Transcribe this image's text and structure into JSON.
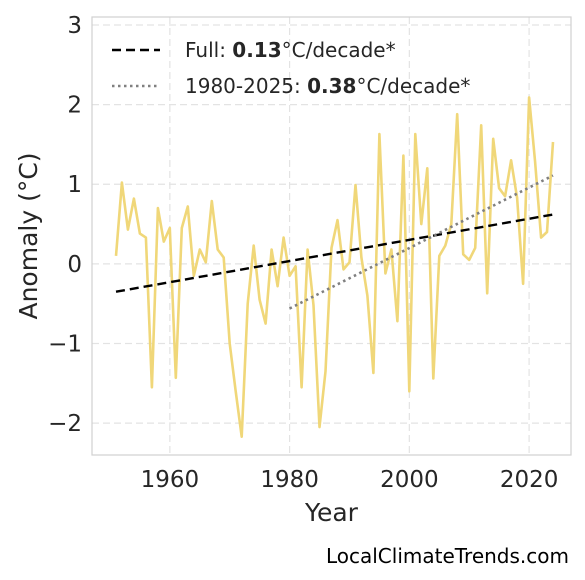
{
  "chart_data": {
    "type": "line",
    "title": "",
    "xlabel": "Year",
    "ylabel": "Anomaly (°C)",
    "xlim": [
      1947,
      2027
    ],
    "ylim": [
      -2.4,
      3.1
    ],
    "xticks": [
      1960,
      1980,
      2000,
      2020
    ],
    "yticks": [
      3,
      2,
      1,
      0,
      -1,
      -2
    ],
    "ytick_labels": [
      "3",
      "2",
      "1",
      "0",
      "−1",
      "−2"
    ],
    "grid": true,
    "legend_position": "top-left",
    "series": [
      {
        "style": "line",
        "color": "#f0d779",
        "x": [
          1951,
          1952,
          1953,
          1954,
          1955,
          1956,
          1957,
          1958,
          1959,
          1960,
          1961,
          1962,
          1963,
          1964,
          1965,
          1966,
          1967,
          1968,
          1969,
          1970,
          1971,
          1972,
          1973,
          1974,
          1975,
          1976,
          1977,
          1978,
          1979,
          1980,
          1981,
          1982,
          1983,
          1984,
          1985,
          1986,
          1987,
          1988,
          1989,
          1990,
          1991,
          1992,
          1993,
          1994,
          1995,
          1996,
          1997,
          1998,
          1999,
          2000,
          2001,
          2002,
          2003,
          2004,
          2005,
          2006,
          2007,
          2008,
          2009,
          2010,
          2011,
          2012,
          2013,
          2014,
          2015,
          2016,
          2017,
          2018,
          2019,
          2020,
          2021,
          2022,
          2023,
          2024
        ],
        "values": [
          0.1,
          1.02,
          0.43,
          0.82,
          0.38,
          0.33,
          -1.55,
          0.7,
          0.28,
          0.45,
          -1.43,
          0.45,
          0.72,
          -0.15,
          0.18,
          0.02,
          0.79,
          0.18,
          0.08,
          -1.0,
          -1.6,
          -2.17,
          -0.5,
          0.23,
          -0.45,
          -0.75,
          0.18,
          -0.28,
          0.33,
          -0.15,
          -0.03,
          -1.55,
          0.18,
          -0.52,
          -2.05,
          -1.35,
          0.2,
          0.55,
          -0.07,
          0.02,
          0.99,
          0.08,
          -0.4,
          -1.37,
          1.63,
          -0.12,
          0.18,
          -0.72,
          1.36,
          -1.6,
          1.63,
          0.5,
          1.2,
          -1.44,
          0.1,
          0.23,
          0.5,
          1.88,
          0.12,
          0.05,
          0.2,
          1.74,
          -0.37,
          1.57,
          0.95,
          0.85,
          1.3,
          0.83,
          -0.25,
          2.09,
          1.28,
          0.33,
          0.4,
          1.53
        ]
      },
      {
        "style": "dashed",
        "color": "#000000",
        "name": "Full: ",
        "value_label": "0.13",
        "unit": "°C/decade*",
        "x": [
          1951,
          2024
        ],
        "values": [
          -0.35,
          0.62
        ]
      },
      {
        "style": "dotted",
        "color": "#808080",
        "name": "1980-2025: ",
        "value_label": "0.38",
        "unit": "°C/decade*",
        "x": [
          1980,
          2024
        ],
        "values": [
          -0.56,
          1.11
        ]
      }
    ]
  },
  "footer": {
    "source": "LocalClimateTrends.com"
  }
}
